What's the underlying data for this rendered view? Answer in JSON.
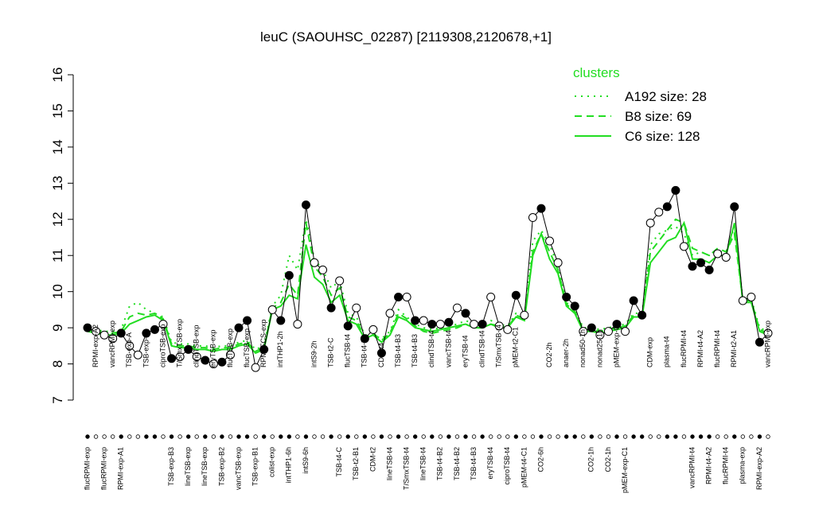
{
  "chart_data": {
    "type": "line",
    "title": "leuC (SAOUHSC_02287) [2119308,2120678,+1]",
    "ylim": [
      7,
      16
    ],
    "yticks": [
      7,
      8,
      9,
      10,
      11,
      12,
      13,
      14,
      15,
      16
    ],
    "categories": [
      "flucRPMI-exp",
      "RPMI-exp-A2",
      "flucRPMI-exp",
      "vancRPMI-exp",
      "RPMI-exp-A1",
      "TSB-exp-A",
      null,
      "TSB-exp-C",
      null,
      "ciproTSB-exp",
      "TSB-exp-B3",
      "T/SmxTSB-exp",
      "lineTSB-exp",
      "clindTSB-exp",
      "lineTSB-exp",
      "eryTSB-exp",
      "TSB-exp-B2",
      "flucTSB-exp",
      "vancTSB-exp",
      "flucTSB-exp",
      "TSB-exp-B1",
      "RPMI/FCS-exp",
      "colist-exp",
      "intTHP1-2h",
      "intTHP1-6h",
      null,
      "intS9-6h",
      "intS9-2h",
      null,
      "TSB-t2-C",
      "TSB-t4-C",
      "flucTSB-t4",
      "TSB-t2-B1",
      "TSB-t4-B1",
      "CDM-t2",
      "CDM-t4",
      "lineTSB-t4",
      "TSB-t4-B3",
      "T/SmxTSB-t4",
      "TSB-t4-B3",
      "lineTSB-t4",
      "clindTSB-t4",
      "TSB-t4-B2",
      "vancTSB-t4",
      "TSB-t4-B2",
      "eryTSB-t4",
      "TSB-t4-B3",
      "clindTSB-t4",
      "eryTSB-t4",
      "T/SmxTSB-t4",
      "ciproTSB-t4",
      "pMEM-t2-C1",
      "pMEM-t4-C1",
      null,
      "CO2-6h",
      "CO2-2h",
      null,
      "anaer-2h",
      null,
      "nonad50-1h",
      "CO2-1h",
      "nonad25-1h",
      "CO2-1h",
      "pMEM-exp-C2",
      "pMEM-exp-C1",
      null,
      null,
      "CDM-exp",
      null,
      "plasma-t4",
      null,
      "flucRPMI-t4",
      "vancRPMI-t4",
      "RPMI-t4-A2",
      "RPMI-t4-A2",
      "flucRPMI-t4",
      "flucRPMI-t4",
      "RPMI-t2-A1",
      "plasma-exp",
      null,
      "RPMI-exp-A2",
      "vancRPMI-exp"
    ],
    "values": [
      9.0,
      8.9,
      8.8,
      8.7,
      8.85,
      8.5,
      8.25,
      8.85,
      8.95,
      9.1,
      8.15,
      8.2,
      8.4,
      8.2,
      8.1,
      8.0,
      8.05,
      8.25,
      9.0,
      9.2,
      7.9,
      8.4,
      9.5,
      9.2,
      10.45,
      9.1,
      12.4,
      10.8,
      10.6,
      9.55,
      10.3,
      9.05,
      9.55,
      8.7,
      8.95,
      8.3,
      9.4,
      9.85,
      9.85,
      9.2,
      9.2,
      9.1,
      9.1,
      9.15,
      9.55,
      9.4,
      9.1,
      9.1,
      9.85,
      9.05,
      8.95,
      9.9,
      9.35,
      12.05,
      12.3,
      11.4,
      10.8,
      9.85,
      9.6,
      8.9,
      9.0,
      8.8,
      8.9,
      9.1,
      8.9,
      9.75,
      9.35,
      11.9,
      12.2,
      12.35,
      12.8,
      11.25,
      10.7,
      10.8,
      10.6,
      11.05,
      10.95,
      12.35,
      9.75,
      9.85,
      8.6,
      8.85
    ],
    "filled": [
      true,
      false,
      false,
      false,
      true,
      false,
      false,
      true,
      true,
      false,
      true,
      false,
      true,
      false,
      true,
      false,
      true,
      false,
      true,
      true,
      false,
      true,
      false,
      true,
      true,
      false,
      true,
      false,
      false,
      true,
      false,
      true,
      false,
      true,
      false,
      true,
      false,
      true,
      false,
      true,
      false,
      true,
      false,
      true,
      false,
      true,
      false,
      true,
      false,
      false,
      false,
      true,
      false,
      false,
      true,
      false,
      false,
      true,
      true,
      false,
      true,
      false,
      false,
      true,
      false,
      true,
      true,
      false,
      false,
      true,
      true,
      false,
      true,
      true,
      true,
      false,
      false,
      true,
      false,
      false,
      true,
      false
    ],
    "legend_title": "clusters",
    "series": [
      {
        "name": "A192 size: 28",
        "color": "#22dd22",
        "style": "dotted",
        "values": [
          9.0,
          8.95,
          8.9,
          8.9,
          8.95,
          9.6,
          9.7,
          9.5,
          9.4,
          9.3,
          8.6,
          8.55,
          8.55,
          8.5,
          8.5,
          8.45,
          8.5,
          8.5,
          8.6,
          8.65,
          8.4,
          8.5,
          9.6,
          9.9,
          11.0,
          10.6,
          12.0,
          10.9,
          10.6,
          10.1,
          10.3,
          9.4,
          9.3,
          8.8,
          8.8,
          8.7,
          8.9,
          9.5,
          9.3,
          9.1,
          9.0,
          8.95,
          9.0,
          9.05,
          9.1,
          9.2,
          9.1,
          9.1,
          9.2,
          9.1,
          9.05,
          9.4,
          9.3,
          11.4,
          11.7,
          11.3,
          10.7,
          9.7,
          9.5,
          9.0,
          9.0,
          8.95,
          9.0,
          9.05,
          9.1,
          9.4,
          9.4,
          11.3,
          11.6,
          11.7,
          11.8,
          11.6,
          11.0,
          11.1,
          11.0,
          11.1,
          11.1,
          11.8,
          9.8,
          9.8,
          9.0,
          8.9
        ]
      },
      {
        "name": "B8 size: 69",
        "color": "#22dd22",
        "style": "dashed",
        "values": [
          8.95,
          8.9,
          8.85,
          8.85,
          8.9,
          9.3,
          9.4,
          9.35,
          9.4,
          9.25,
          8.55,
          8.5,
          8.5,
          8.45,
          8.45,
          8.4,
          8.45,
          8.45,
          8.55,
          8.6,
          8.35,
          8.45,
          9.55,
          9.7,
          10.2,
          9.9,
          11.9,
          10.7,
          10.4,
          9.9,
          10.1,
          9.3,
          9.2,
          8.75,
          8.85,
          8.65,
          8.85,
          9.4,
          9.25,
          9.05,
          8.9,
          8.85,
          8.9,
          8.95,
          9.0,
          9.1,
          9.0,
          9.0,
          9.1,
          9.0,
          9.0,
          9.35,
          9.25,
          11.1,
          11.6,
          11.1,
          10.6,
          9.65,
          9.45,
          8.95,
          8.95,
          8.9,
          8.95,
          9.0,
          9.05,
          9.35,
          9.35,
          11.1,
          11.4,
          11.7,
          12.0,
          11.9,
          11.2,
          11.1,
          11.0,
          11.2,
          11.1,
          11.6,
          9.75,
          9.75,
          8.95,
          8.85
        ]
      },
      {
        "name": "C6 size: 128",
        "color": "#22dd22",
        "style": "solid",
        "values": [
          8.9,
          8.85,
          8.8,
          8.8,
          8.85,
          9.1,
          9.2,
          9.3,
          9.35,
          9.2,
          8.5,
          8.45,
          8.45,
          8.4,
          8.4,
          8.35,
          8.4,
          8.4,
          8.5,
          8.55,
          8.3,
          8.4,
          9.5,
          9.6,
          9.9,
          9.8,
          11.3,
          10.4,
          10.2,
          9.7,
          9.9,
          9.2,
          9.1,
          8.7,
          8.8,
          8.6,
          8.8,
          9.3,
          9.2,
          9.0,
          8.95,
          8.9,
          8.95,
          9.0,
          9.05,
          9.1,
          9.0,
          9.0,
          9.1,
          9.05,
          9.0,
          9.3,
          9.2,
          11.0,
          11.6,
          10.9,
          10.5,
          9.6,
          9.4,
          8.9,
          8.9,
          8.85,
          8.9,
          8.95,
          9.0,
          9.3,
          9.3,
          10.8,
          11.1,
          11.4,
          11.5,
          11.9,
          10.9,
          10.9,
          10.8,
          11.0,
          11.0,
          11.9,
          9.7,
          9.7,
          8.9,
          8.8
        ]
      }
    ]
  }
}
